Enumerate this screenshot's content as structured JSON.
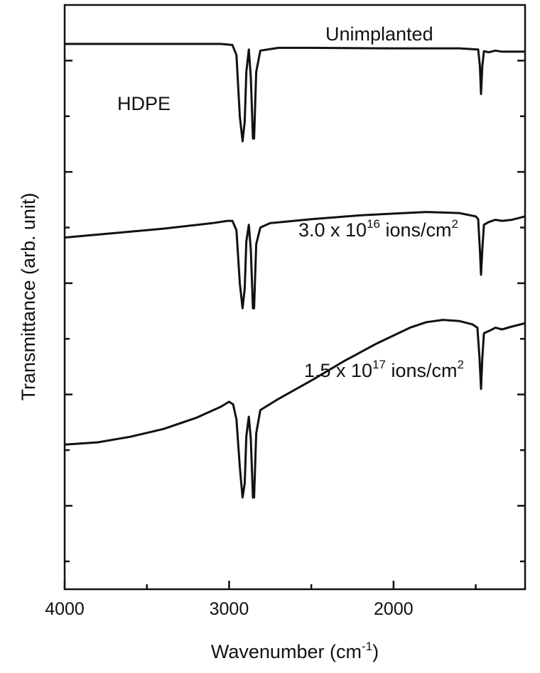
{
  "chart_data": {
    "type": "line",
    "xlabel": "Wavenumber (cm",
    "xlabel_sup": "-1",
    "xlabel_suffix": ")",
    "ylabel": "Transmittance (arb. unit)",
    "xlim": [
      4000,
      1200
    ],
    "x_reversed": true,
    "xticks": [
      "4000",
      "3000",
      "2000"
    ],
    "y_units": "arbitrary, stacked spectra (each series offset vertically)",
    "ylim": [
      -0.5,
      10
    ],
    "grid": false,
    "legend": "none",
    "panel_label": "HDPE",
    "series": [
      {
        "name": "Unimplanted",
        "label_parts": [
          "Unimplanted"
        ],
        "color": "#111111",
        "points": [
          [
            4000,
            9.3
          ],
          [
            3050,
            9.3
          ],
          [
            2980,
            9.28
          ],
          [
            2955,
            9.1
          ],
          [
            2935,
            8.0
          ],
          [
            2918,
            7.55
          ],
          [
            2905,
            7.9
          ],
          [
            2895,
            8.8
          ],
          [
            2880,
            9.2
          ],
          [
            2868,
            8.7
          ],
          [
            2855,
            7.6
          ],
          [
            2848,
            7.6
          ],
          [
            2835,
            8.8
          ],
          [
            2810,
            9.18
          ],
          [
            2700,
            9.23
          ],
          [
            2500,
            9.23
          ],
          [
            2000,
            9.22
          ],
          [
            1600,
            9.22
          ],
          [
            1485,
            9.2
          ],
          [
            1475,
            8.9
          ],
          [
            1468,
            8.4
          ],
          [
            1460,
            8.9
          ],
          [
            1450,
            9.17
          ],
          [
            1420,
            9.15
          ],
          [
            1380,
            9.18
          ],
          [
            1340,
            9.16
          ],
          [
            1200,
            9.16
          ]
        ]
      },
      {
        "name": "3.0 x 10^16 ions/cm^2",
        "label_parts": [
          "3.0 x 10",
          "16",
          " ions/cm",
          "2"
        ],
        "color": "#111111",
        "points": [
          [
            4000,
            5.82
          ],
          [
            3700,
            5.9
          ],
          [
            3400,
            5.98
          ],
          [
            3100,
            6.08
          ],
          [
            3010,
            6.12
          ],
          [
            2980,
            6.12
          ],
          [
            2955,
            5.95
          ],
          [
            2935,
            5.0
          ],
          [
            2918,
            4.55
          ],
          [
            2905,
            4.9
          ],
          [
            2895,
            5.75
          ],
          [
            2880,
            6.05
          ],
          [
            2868,
            5.6
          ],
          [
            2855,
            4.55
          ],
          [
            2848,
            4.55
          ],
          [
            2835,
            5.7
          ],
          [
            2810,
            6.0
          ],
          [
            2750,
            6.08
          ],
          [
            2500,
            6.15
          ],
          [
            2200,
            6.22
          ],
          [
            2000,
            6.25
          ],
          [
            1800,
            6.28
          ],
          [
            1600,
            6.26
          ],
          [
            1500,
            6.2
          ],
          [
            1485,
            6.15
          ],
          [
            1475,
            5.6
          ],
          [
            1468,
            5.15
          ],
          [
            1460,
            5.6
          ],
          [
            1450,
            6.05
          ],
          [
            1420,
            6.1
          ],
          [
            1380,
            6.14
          ],
          [
            1340,
            6.12
          ],
          [
            1280,
            6.14
          ],
          [
            1200,
            6.2
          ]
        ]
      },
      {
        "name": "1.5 x 10^17 ions/cm^2",
        "label_parts": [
          "1.5 x 10",
          "17",
          " ions/cm",
          "2"
        ],
        "color": "#111111",
        "points": [
          [
            4000,
            2.1
          ],
          [
            3800,
            2.14
          ],
          [
            3600,
            2.24
          ],
          [
            3400,
            2.38
          ],
          [
            3200,
            2.58
          ],
          [
            3050,
            2.78
          ],
          [
            3000,
            2.87
          ],
          [
            2975,
            2.82
          ],
          [
            2955,
            2.55
          ],
          [
            2935,
            1.7
          ],
          [
            2918,
            1.15
          ],
          [
            2905,
            1.4
          ],
          [
            2895,
            2.25
          ],
          [
            2880,
            2.6
          ],
          [
            2868,
            2.2
          ],
          [
            2855,
            1.15
          ],
          [
            2848,
            1.15
          ],
          [
            2835,
            2.3
          ],
          [
            2810,
            2.72
          ],
          [
            2700,
            2.92
          ],
          [
            2500,
            3.25
          ],
          [
            2300,
            3.6
          ],
          [
            2100,
            3.92
          ],
          [
            1900,
            4.2
          ],
          [
            1800,
            4.3
          ],
          [
            1700,
            4.34
          ],
          [
            1600,
            4.32
          ],
          [
            1520,
            4.26
          ],
          [
            1490,
            4.2
          ],
          [
            1477,
            3.65
          ],
          [
            1468,
            3.1
          ],
          [
            1460,
            3.65
          ],
          [
            1450,
            4.1
          ],
          [
            1420,
            4.14
          ],
          [
            1380,
            4.2
          ],
          [
            1340,
            4.17
          ],
          [
            1280,
            4.22
          ],
          [
            1200,
            4.28
          ]
        ]
      }
    ]
  }
}
